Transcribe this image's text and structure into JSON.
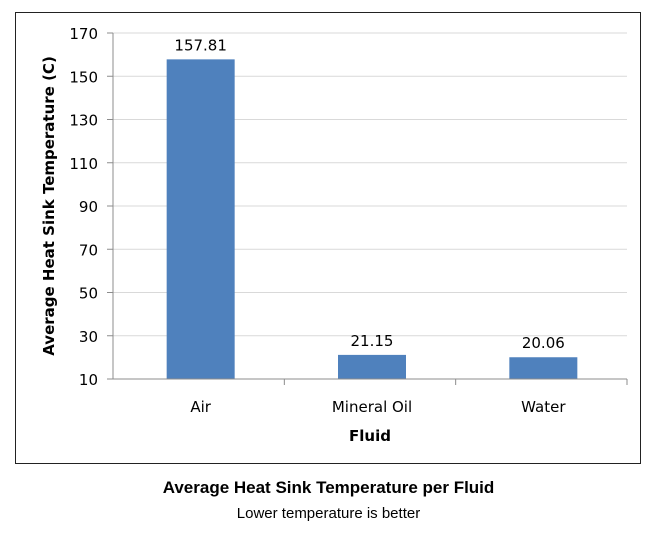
{
  "chart_data": {
    "type": "bar",
    "categories": [
      "Air",
      "Mineral Oil",
      "Water"
    ],
    "values": [
      157.81,
      21.15,
      20.06
    ],
    "data_labels": [
      "157.81",
      "21.15",
      "20.06"
    ],
    "xlabel": "Fluid",
    "ylabel": "Average Heat Sink Temperature (C)",
    "ylim": [
      10,
      170
    ],
    "yticks": [
      10,
      30,
      50,
      70,
      90,
      110,
      130,
      150,
      170
    ],
    "grid": true,
    "legend": "none",
    "bar_color": "#4f81bd",
    "grid_color": "#d9d9d9"
  },
  "caption": {
    "title": "Average Heat Sink Temperature per Fluid",
    "subtitle": "Lower temperature is better"
  }
}
